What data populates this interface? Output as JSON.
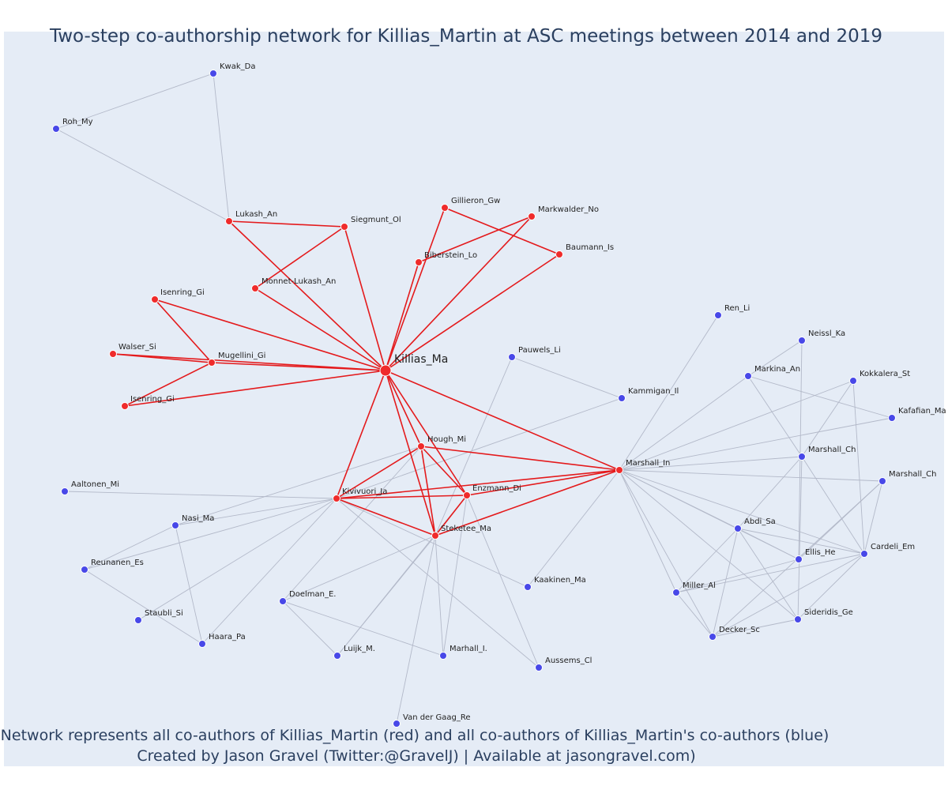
{
  "title": "Two-step co-authorship network for Killias_Martin at ASC meetings between 2014 and 2019",
  "caption_line1": "Network represents all co-authors of Killias_Martin (red) and all co-authors of Killias_Martin's co-authors (blue)",
  "caption_line2": "Created by Jason Gravel (Twitter:@GravelJ) | Available at jasongravel.com)",
  "colors": {
    "coauthor": "#ef2b2b",
    "second_degree": "#4848e8",
    "coauthor_edge": "#e41a1c",
    "second_degree_edge": "#b3b9c9",
    "title": "#2a3f5f"
  },
  "nodes": [
    {
      "id": "killias",
      "label": "Killias_Ma",
      "group": "center"
    },
    {
      "id": "kwak",
      "label": "Kwak_Da",
      "group": "blue"
    },
    {
      "id": "roh",
      "label": "Roh_My",
      "group": "blue"
    },
    {
      "id": "lukash",
      "label": "Lukash_An",
      "group": "red"
    },
    {
      "id": "siegmunt",
      "label": "Siegmunt_Ol",
      "group": "red"
    },
    {
      "id": "gillieron",
      "label": "Gillieron_Gw",
      "group": "red"
    },
    {
      "id": "markwalder",
      "label": "Markwalder_No",
      "group": "red"
    },
    {
      "id": "biberstein",
      "label": "Biberstein_Lo",
      "group": "red"
    },
    {
      "id": "baumann",
      "label": "Baumann_Is",
      "group": "red"
    },
    {
      "id": "monnet",
      "label": "Monnet-Lukash_An",
      "group": "red"
    },
    {
      "id": "isenring1",
      "label": "Isenring_Gi",
      "group": "red"
    },
    {
      "id": "walser",
      "label": "Walser_Si",
      "group": "red"
    },
    {
      "id": "mugellini",
      "label": "Mugellini_Gi",
      "group": "red"
    },
    {
      "id": "isenring2",
      "label": "Isenring_Gi",
      "group": "red"
    },
    {
      "id": "hough",
      "label": "Hough_Mi",
      "group": "red"
    },
    {
      "id": "kivivuori",
      "label": "Kivivuori_Ja",
      "group": "red"
    },
    {
      "id": "enzmann",
      "label": "Enzmann_Di",
      "group": "red"
    },
    {
      "id": "steketee",
      "label": "Steketee_Ma",
      "group": "red"
    },
    {
      "id": "marshall_in",
      "label": "Marshall_In",
      "group": "red"
    },
    {
      "id": "pauwels",
      "label": "Pauwels_Li",
      "group": "blue"
    },
    {
      "id": "kammigan",
      "label": "Kammigan_Il",
      "group": "blue"
    },
    {
      "id": "ren",
      "label": "Ren_Li",
      "group": "blue"
    },
    {
      "id": "neissl",
      "label": "Neissl_Ka",
      "group": "blue"
    },
    {
      "id": "markina",
      "label": "Markina_An",
      "group": "blue"
    },
    {
      "id": "kokkalera",
      "label": "Kokkalera_St",
      "group": "blue"
    },
    {
      "id": "kafafian",
      "label": "Kafafian_Ma",
      "group": "blue"
    },
    {
      "id": "marshall_ch1",
      "label": "Marshall_Ch",
      "group": "blue"
    },
    {
      "id": "marshall_ch2",
      "label": "Marshall_Ch",
      "group": "blue"
    },
    {
      "id": "abdi",
      "label": "Abdi_Sa",
      "group": "blue"
    },
    {
      "id": "ellis",
      "label": "Ellis_He",
      "group": "blue"
    },
    {
      "id": "cardeli",
      "label": "Cardeli_Em",
      "group": "blue"
    },
    {
      "id": "miller",
      "label": "Miller_Al",
      "group": "blue"
    },
    {
      "id": "sideridis",
      "label": "Sideridis_Ge",
      "group": "blue"
    },
    {
      "id": "decker",
      "label": "Decker_Sc",
      "group": "blue"
    },
    {
      "id": "aaltonen",
      "label": "Aaltonen_Mi",
      "group": "blue"
    },
    {
      "id": "nasi",
      "label": "Nasi_Ma",
      "group": "blue"
    },
    {
      "id": "reunanen",
      "label": "Reunanen_Es",
      "group": "blue"
    },
    {
      "id": "staubli",
      "label": "Staubli_Si",
      "group": "blue"
    },
    {
      "id": "haara",
      "label": "Haara_Pa",
      "group": "blue"
    },
    {
      "id": "doelman",
      "label": "Doelman_E.",
      "group": "blue"
    },
    {
      "id": "luijk",
      "label": "Luijk_M.",
      "group": "blue"
    },
    {
      "id": "marhall_i",
      "label": "Marhall_I.",
      "group": "blue"
    },
    {
      "id": "kaakinen",
      "label": "Kaakinen_Ma",
      "group": "blue"
    },
    {
      "id": "aussems",
      "label": "Aussems_Cl",
      "group": "blue"
    },
    {
      "id": "vandergaag",
      "label": "Van der Gaag_Re",
      "group": "blue"
    }
  ]
}
